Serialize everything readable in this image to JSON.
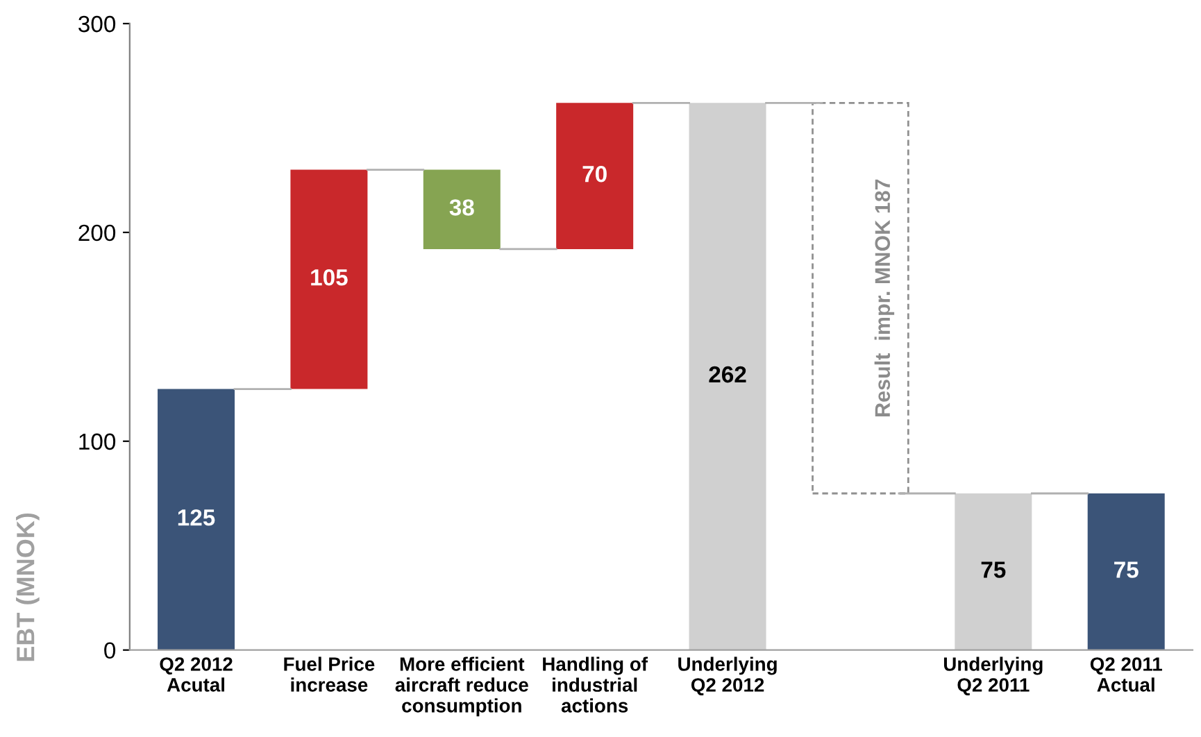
{
  "chart_data": {
    "type": "bar",
    "ylabel": "EBT (MNOK)",
    "categories": [
      "Q2 2012\nAcutal",
      "Fuel Price\nincrease",
      "More efficient\naircraft reduce\nconsumption",
      "Handling of\nindustrial\nactions",
      "Underlying\nQ2 2012",
      null,
      "Underlying\nQ2 2011",
      "Q2 2011\nActual"
    ],
    "series": [
      {
        "values": [
          125,
          105,
          38,
          70,
          262,
          null,
          75,
          75
        ],
        "base": [
          0,
          125,
          192,
          192,
          0,
          null,
          0,
          0
        ],
        "colors": [
          "#3b5478",
          "#c9282b",
          "#86a452",
          "#c9282b",
          "#d0d0d0",
          null,
          "#d0d0d0",
          "#3b5478"
        ],
        "value_labels": [
          "125",
          "105",
          "38",
          "70",
          "262",
          null,
          "75",
          "75"
        ]
      },
      {
        "values": [
          null,
          null,
          null,
          null,
          null,
          187,
          null,
          null
        ],
        "base": [
          null,
          null,
          null,
          null,
          null,
          75,
          null,
          null
        ],
        "color": "#ffffff",
        "line_style": "dashed",
        "value_labels": [
          null,
          null,
          null,
          null,
          null,
          "Result  impr. MNOK 187",
          null,
          null
        ]
      }
    ],
    "ylim": [
      0,
      300
    ],
    "yticks": [
      0,
      100,
      200,
      300
    ],
    "grid": false,
    "legend": false
  }
}
